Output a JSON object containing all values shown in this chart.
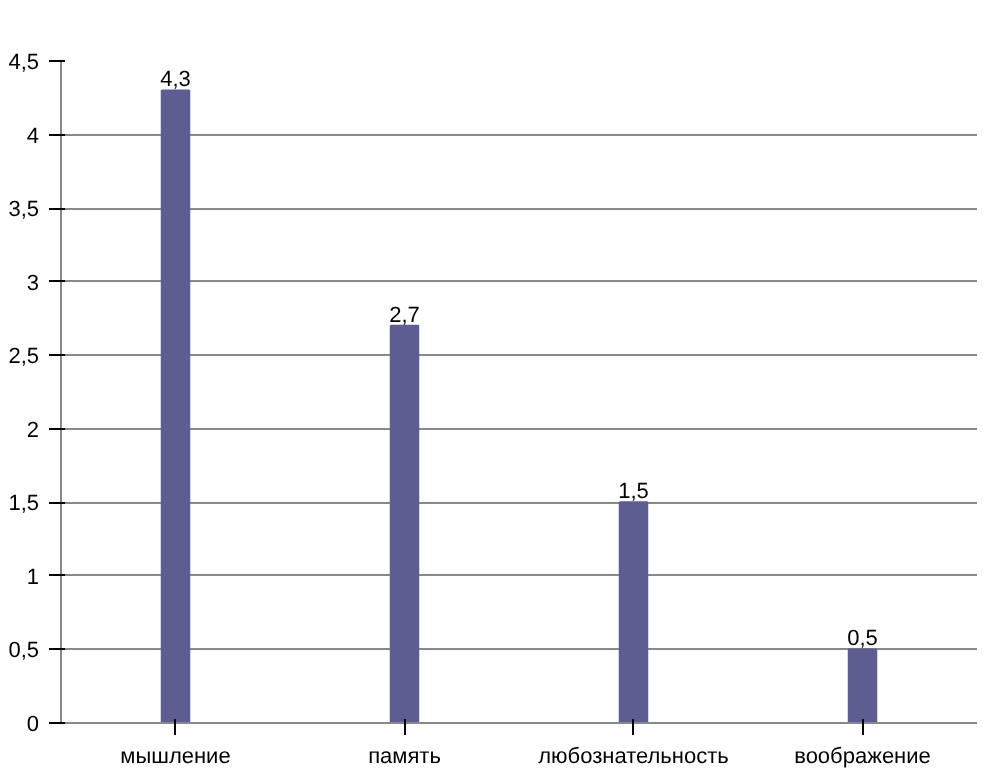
{
  "chart_data": {
    "type": "bar",
    "categories": [
      "мышление",
      "память",
      "любознательность",
      "воображение"
    ],
    "values": [
      4.3,
      2.7,
      1.5,
      0.5
    ],
    "value_labels": [
      "4,3",
      "2,7",
      "1,5",
      "0,5"
    ],
    "color": "#5d5d92",
    "ylim": [
      0,
      4.5
    ],
    "yticks": [
      0,
      {
        "value": 0.5,
        "label": "0,5"
      },
      1,
      {
        "value": 1.5,
        "label": "1,5"
      },
      2,
      {
        "value": 2.5,
        "label": "2,5"
      },
      3,
      {
        "value": 3.5,
        "label": "3,5"
      },
      4,
      {
        "value": 4.5,
        "label": "4,5"
      }
    ],
    "grid": "y"
  }
}
